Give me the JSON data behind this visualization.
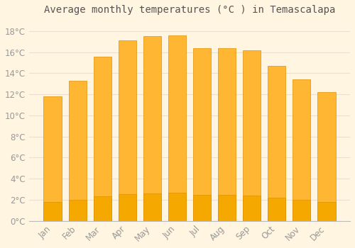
{
  "title": "Average monthly temperatures (°C ) in Temascalapa",
  "months": [
    "Jan",
    "Feb",
    "Mar",
    "Apr",
    "May",
    "Jun",
    "Jul",
    "Aug",
    "Sep",
    "Oct",
    "Nov",
    "Dec"
  ],
  "values": [
    11.8,
    13.3,
    15.6,
    17.1,
    17.5,
    17.6,
    16.4,
    16.4,
    16.2,
    14.7,
    13.4,
    12.2
  ],
  "bar_color_top": "#FFB733",
  "bar_color_bottom": "#F5A800",
  "bar_edge_color": "#E09000",
  "ylim": [
    0,
    19
  ],
  "yticks": [
    0,
    2,
    4,
    6,
    8,
    10,
    12,
    14,
    16,
    18
  ],
  "background_color": "#FFF5E0",
  "plot_bg_color": "#FFF5E0",
  "grid_color": "#E8E0D0",
  "title_fontsize": 10,
  "tick_fontsize": 8.5,
  "tick_label_color": "#999999",
  "title_color": "#555555"
}
